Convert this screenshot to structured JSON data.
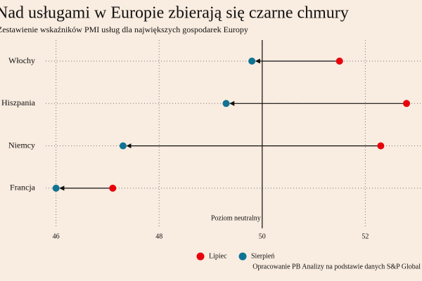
{
  "chart_data": {
    "type": "dumbbell",
    "title": "Nad usługami w Europie zbierają się czarne chmury",
    "subtitle": "Zestawienie wskaźników PMI usług dla największych gospodarek Europy",
    "categories": [
      "Włochy",
      "Hiszpania",
      "Niemcy",
      "Francja"
    ],
    "series": [
      {
        "name": "Lipiec",
        "color": "#e8000b",
        "values": [
          51.5,
          52.8,
          52.3,
          47.1
        ]
      },
      {
        "name": "Sierpień",
        "color": "#0f7394",
        "values": [
          49.8,
          49.3,
          47.3,
          46.0
        ]
      }
    ],
    "xlim": [
      45.8,
      53.1
    ],
    "xticks": [
      46,
      48,
      50,
      52
    ],
    "reference_line": {
      "value": 50,
      "label": "Poziom neutralny"
    },
    "grid": true,
    "source": "Opracowanie PB Analizy na podstawie danych S&P Global"
  }
}
